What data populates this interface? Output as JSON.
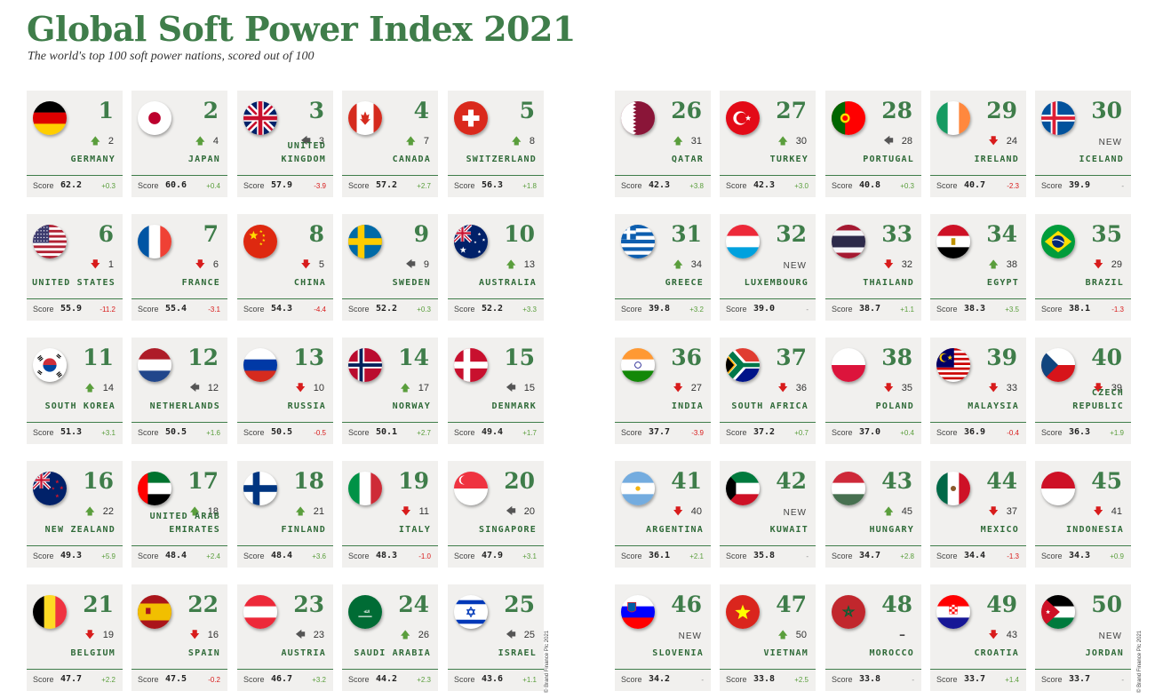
{
  "title": "Global Soft Power Index 2021",
  "subtitle": "The world's top 100 soft power nations, scored out of 100",
  "credit": "© Brand Finance Plc 2021",
  "score_label": "Score",
  "colors": {
    "accent": "#3f7d4a",
    "up": "#5a9e3c",
    "down": "#d81c1c",
    "card": "#f1f0ee"
  },
  "entries": [
    {
      "rank": "1",
      "country": "GERMANY",
      "prev": "2",
      "trend": "up",
      "score": "62.2",
      "delta": "+0.3",
      "flag": "germany-flag-icon"
    },
    {
      "rank": "2",
      "country": "JAPAN",
      "prev": "4",
      "trend": "up",
      "score": "60.6",
      "delta": "+0.4",
      "flag": "japan-flag-icon"
    },
    {
      "rank": "3",
      "country": "UNITED KINGDOM",
      "prev": "3",
      "trend": "same",
      "score": "57.9",
      "delta": "-3.9",
      "flag": "uk-flag-icon"
    },
    {
      "rank": "4",
      "country": "CANADA",
      "prev": "7",
      "trend": "up",
      "score": "57.2",
      "delta": "+2.7",
      "flag": "canada-flag-icon"
    },
    {
      "rank": "5",
      "country": "SWITZERLAND",
      "prev": "8",
      "trend": "up",
      "score": "56.3",
      "delta": "+1.8",
      "flag": "switzerland-flag-icon"
    },
    {
      "rank": "6",
      "country": "UNITED STATES",
      "prev": "1",
      "trend": "down",
      "score": "55.9",
      "delta": "-11.2",
      "flag": "usa-flag-icon"
    },
    {
      "rank": "7",
      "country": "FRANCE",
      "prev": "6",
      "trend": "down",
      "score": "55.4",
      "delta": "-3.1",
      "flag": "france-flag-icon"
    },
    {
      "rank": "8",
      "country": "CHINA",
      "prev": "5",
      "trend": "down",
      "score": "54.3",
      "delta": "-4.4",
      "flag": "china-flag-icon"
    },
    {
      "rank": "9",
      "country": "SWEDEN",
      "prev": "9",
      "trend": "same",
      "score": "52.2",
      "delta": "+0.3",
      "flag": "sweden-flag-icon"
    },
    {
      "rank": "10",
      "country": "AUSTRALIA",
      "prev": "13",
      "trend": "up",
      "score": "52.2",
      "delta": "+3.3",
      "flag": "australia-flag-icon"
    },
    {
      "rank": "11",
      "country": "SOUTH KOREA",
      "prev": "14",
      "trend": "up",
      "score": "51.3",
      "delta": "+3.1",
      "flag": "south-korea-flag-icon"
    },
    {
      "rank": "12",
      "country": "NETHERLANDS",
      "prev": "12",
      "trend": "same",
      "score": "50.5",
      "delta": "+1.6",
      "flag": "netherlands-flag-icon"
    },
    {
      "rank": "13",
      "country": "RUSSIA",
      "prev": "10",
      "trend": "down",
      "score": "50.5",
      "delta": "-0.5",
      "flag": "russia-flag-icon"
    },
    {
      "rank": "14",
      "country": "NORWAY",
      "prev": "17",
      "trend": "up",
      "score": "50.1",
      "delta": "+2.7",
      "flag": "norway-flag-icon"
    },
    {
      "rank": "15",
      "country": "DENMARK",
      "prev": "15",
      "trend": "same",
      "score": "49.4",
      "delta": "+1.7",
      "flag": "denmark-flag-icon"
    },
    {
      "rank": "16",
      "country": "NEW ZEALAND",
      "prev": "22",
      "trend": "up",
      "score": "49.3",
      "delta": "+5.9",
      "flag": "new-zealand-flag-icon"
    },
    {
      "rank": "17",
      "country": "UNITED ARAB EMIRATES",
      "prev": "18",
      "trend": "up",
      "score": "48.4",
      "delta": "+2.4",
      "flag": "uae-flag-icon"
    },
    {
      "rank": "18",
      "country": "FINLAND",
      "prev": "21",
      "trend": "up",
      "score": "48.4",
      "delta": "+3.6",
      "flag": "finland-flag-icon"
    },
    {
      "rank": "19",
      "country": "ITALY",
      "prev": "11",
      "trend": "down",
      "score": "48.3",
      "delta": "-1.0",
      "flag": "italy-flag-icon"
    },
    {
      "rank": "20",
      "country": "SINGAPORE",
      "prev": "20",
      "trend": "same",
      "score": "47.9",
      "delta": "+3.1",
      "flag": "singapore-flag-icon"
    },
    {
      "rank": "21",
      "country": "BELGIUM",
      "prev": "19",
      "trend": "down",
      "score": "47.7",
      "delta": "+2.2",
      "flag": "belgium-flag-icon"
    },
    {
      "rank": "22",
      "country": "SPAIN",
      "prev": "16",
      "trend": "down",
      "score": "47.5",
      "delta": "-0.2",
      "flag": "spain-flag-icon"
    },
    {
      "rank": "23",
      "country": "AUSTRIA",
      "prev": "23",
      "trend": "same",
      "score": "46.7",
      "delta": "+3.2",
      "flag": "austria-flag-icon"
    },
    {
      "rank": "24",
      "country": "SAUDI ARABIA",
      "prev": "26",
      "trend": "up",
      "score": "44.2",
      "delta": "+2.3",
      "flag": "saudi-arabia-flag-icon"
    },
    {
      "rank": "25",
      "country": "ISRAEL",
      "prev": "25",
      "trend": "same",
      "score": "43.6",
      "delta": "+1.1",
      "flag": "israel-flag-icon"
    },
    {
      "rank": "26",
      "country": "QATAR",
      "prev": "31",
      "trend": "up",
      "score": "42.3",
      "delta": "+3.8",
      "flag": "qatar-flag-icon"
    },
    {
      "rank": "27",
      "country": "TURKEY",
      "prev": "30",
      "trend": "up",
      "score": "42.3",
      "delta": "+3.0",
      "flag": "turkey-flag-icon"
    },
    {
      "rank": "28",
      "country": "PORTUGAL",
      "prev": "28",
      "trend": "same",
      "score": "40.8",
      "delta": "+0.3",
      "flag": "portugal-flag-icon"
    },
    {
      "rank": "29",
      "country": "IRELAND",
      "prev": "24",
      "trend": "down",
      "score": "40.7",
      "delta": "-2.3",
      "flag": "ireland-flag-icon"
    },
    {
      "rank": "30",
      "country": "ICELAND",
      "prev": "NEW",
      "trend": "new",
      "score": "39.9",
      "delta": "-",
      "flag": "iceland-flag-icon"
    },
    {
      "rank": "31",
      "country": "GREECE",
      "prev": "34",
      "trend": "up",
      "score": "39.8",
      "delta": "+3.2",
      "flag": "greece-flag-icon"
    },
    {
      "rank": "32",
      "country": "LUXEMBOURG",
      "prev": "NEW",
      "trend": "new",
      "score": "39.0",
      "delta": "-",
      "flag": "luxembourg-flag-icon"
    },
    {
      "rank": "33",
      "country": "THAILAND",
      "prev": "32",
      "trend": "down",
      "score": "38.7",
      "delta": "+1.1",
      "flag": "thailand-flag-icon"
    },
    {
      "rank": "34",
      "country": "EGYPT",
      "prev": "38",
      "trend": "up",
      "score": "38.3",
      "delta": "+3.5",
      "flag": "egypt-flag-icon"
    },
    {
      "rank": "35",
      "country": "BRAZIL",
      "prev": "29",
      "trend": "down",
      "score": "38.1",
      "delta": "-1.3",
      "flag": "brazil-flag-icon"
    },
    {
      "rank": "36",
      "country": "INDIA",
      "prev": "27",
      "trend": "down",
      "score": "37.7",
      "delta": "-3.9",
      "flag": "india-flag-icon"
    },
    {
      "rank": "37",
      "country": "SOUTH AFRICA",
      "prev": "36",
      "trend": "down",
      "score": "37.2",
      "delta": "+0.7",
      "flag": "south-africa-flag-icon"
    },
    {
      "rank": "38",
      "country": "POLAND",
      "prev": "35",
      "trend": "down",
      "score": "37.0",
      "delta": "+0.4",
      "flag": "poland-flag-icon"
    },
    {
      "rank": "39",
      "country": "MALAYSIA",
      "prev": "33",
      "trend": "down",
      "score": "36.9",
      "delta": "-0.4",
      "flag": "malaysia-flag-icon"
    },
    {
      "rank": "40",
      "country": "CZECH REPUBLIC",
      "prev": "39",
      "trend": "down",
      "score": "36.3",
      "delta": "+1.9",
      "flag": "czech-republic-flag-icon"
    },
    {
      "rank": "41",
      "country": "ARGENTINA",
      "prev": "40",
      "trend": "down",
      "score": "36.1",
      "delta": "+2.1",
      "flag": "argentina-flag-icon"
    },
    {
      "rank": "42",
      "country": "KUWAIT",
      "prev": "NEW",
      "trend": "new",
      "score": "35.8",
      "delta": "-",
      "flag": "kuwait-flag-icon"
    },
    {
      "rank": "43",
      "country": "HUNGARY",
      "prev": "45",
      "trend": "up",
      "score": "34.7",
      "delta": "+2.8",
      "flag": "hungary-flag-icon"
    },
    {
      "rank": "44",
      "country": "MEXICO",
      "prev": "37",
      "trend": "down",
      "score": "34.4",
      "delta": "-1.3",
      "flag": "mexico-flag-icon"
    },
    {
      "rank": "45",
      "country": "INDONESIA",
      "prev": "41",
      "trend": "down",
      "score": "34.3",
      "delta": "+0.9",
      "flag": "indonesia-flag-icon"
    },
    {
      "rank": "46",
      "country": "SLOVENIA",
      "prev": "NEW",
      "trend": "new",
      "score": "34.2",
      "delta": "-",
      "flag": "slovenia-flag-icon"
    },
    {
      "rank": "47",
      "country": "VIETNAM",
      "prev": "50",
      "trend": "up",
      "score": "33.8",
      "delta": "+2.5",
      "flag": "vietnam-flag-icon"
    },
    {
      "rank": "48",
      "country": "MOROCCO",
      "prev": "–",
      "trend": "none",
      "score": "33.8",
      "delta": "-",
      "flag": "morocco-flag-icon"
    },
    {
      "rank": "49",
      "country": "CROATIA",
      "prev": "43",
      "trend": "down",
      "score": "33.7",
      "delta": "+1.4",
      "flag": "croatia-flag-icon"
    },
    {
      "rank": "50",
      "country": "JORDAN",
      "prev": "NEW",
      "trend": "new",
      "score": "33.7",
      "delta": "-",
      "flag": "jordan-flag-icon"
    }
  ]
}
